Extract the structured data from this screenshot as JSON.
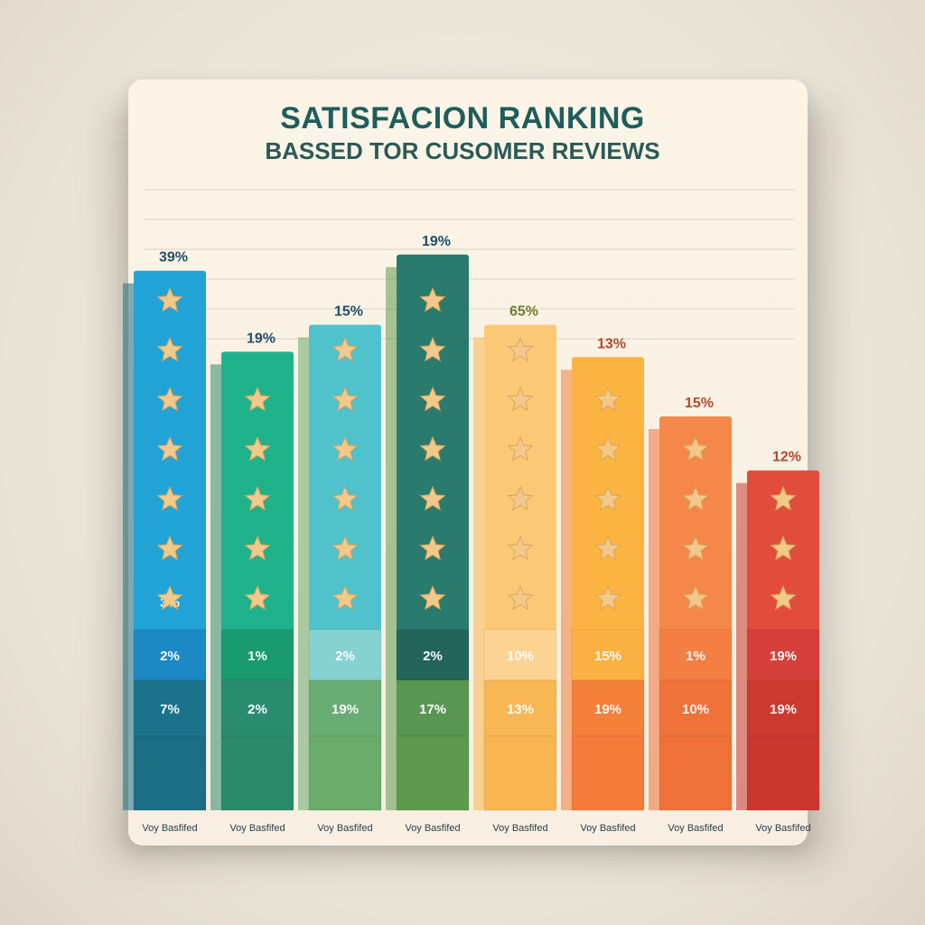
{
  "chart_data": {
    "type": "bar",
    "title": "SATISFACION RANKING",
    "subtitle": "BASSED TOR CUSOMER REVIEWS",
    "categories": [
      "Voy Basfifed",
      "Voy Basfifed",
      "Voy Basfifed",
      "Voy Basfifed",
      "Voy Basfifed",
      "Voy Basfifed",
      "Voy Basfifed",
      "Voy Basfifed"
    ],
    "top_labels": [
      "39%",
      "19%",
      "15%",
      "19%",
      "65%",
      "13%",
      "15%",
      "12%"
    ],
    "values": [
      100,
      85,
      90,
      103,
      90,
      84,
      73,
      63
    ],
    "stars": [
      7,
      7,
      7,
      8,
      7,
      6,
      5,
      4
    ],
    "segment_labels_upper": [
      "3%",
      "",
      "",
      "",
      "",
      "",
      "",
      ""
    ],
    "segment_labels_mid": [
      "2%",
      "1%",
      "2%",
      "2%",
      "10%",
      "15%",
      "1%",
      "19%"
    ],
    "segment_labels_low": [
      "7%",
      "2%",
      "19%",
      "17%",
      "13%",
      "19%",
      "10%",
      "19%"
    ],
    "colors": [
      "#22a3d6",
      "#1fb28a",
      "#4fc2cc",
      "#2a7a6e",
      "#fbc976",
      "#fbb441",
      "#f5874b",
      "#e24d3b"
    ],
    "dark_colors": [
      "#1b6e83",
      "#2b8a6a",
      "#6aaa6a",
      "#5e9a4e",
      "#f7b651",
      "#f47b3a",
      "#ef7038",
      "#c9372e"
    ],
    "segment_colors": [
      "#1c88c4",
      "#1a9a6f",
      "#86d2d0",
      "#23655b",
      "#fbd493",
      "#fbb143",
      "#f47f44",
      "#d6403a"
    ],
    "ylim": [
      0,
      110
    ],
    "grid": true
  }
}
